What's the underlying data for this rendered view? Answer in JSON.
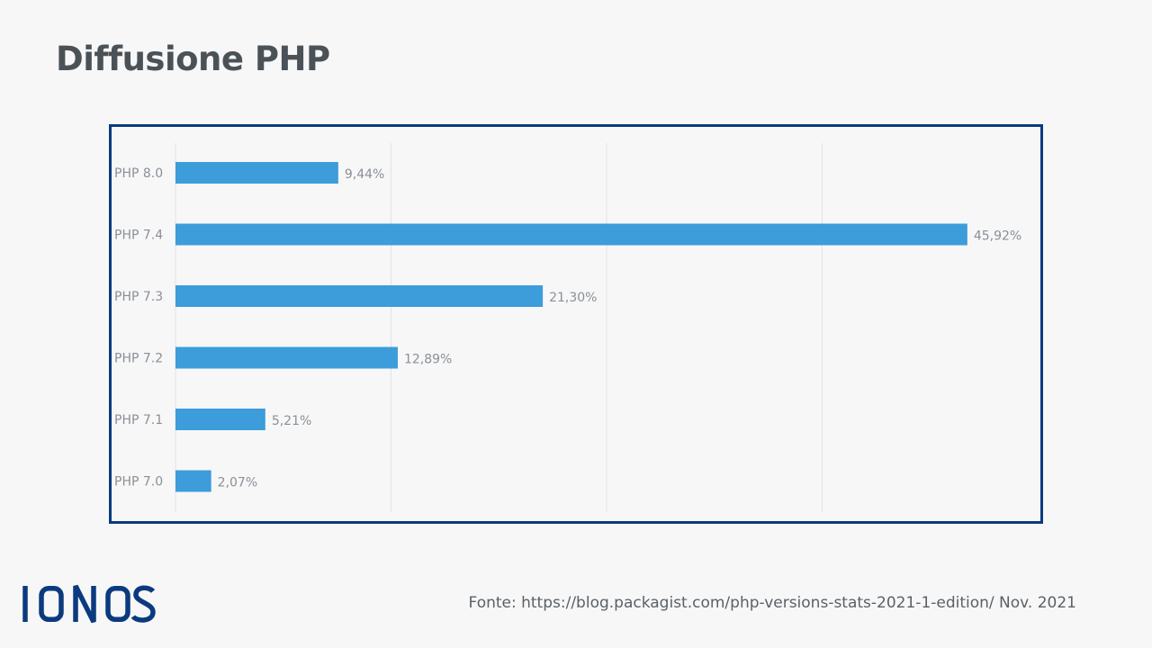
{
  "title": "Diffusione PHP",
  "chart_data": {
    "type": "bar",
    "orientation": "horizontal",
    "categories": [
      "PHP 8.0",
      "PHP 7.4",
      "PHP 7.3",
      "PHP 7.2",
      "PHP 7.1",
      "PHP 7.0"
    ],
    "values": [
      9.44,
      45.92,
      21.3,
      12.89,
      5.21,
      2.07
    ],
    "value_labels": [
      "9,44%",
      "45,92%",
      "21,30%",
      "12,89%",
      "5,21%",
      "2,07%"
    ],
    "xlim": [
      0,
      50
    ],
    "grid": true,
    "bar_color": "#3d9cda",
    "frame_color": "#0b3a7e"
  },
  "footer": {
    "logo_text": "IONOS",
    "source": "Fonte: https://blog.packagist.com/php-versions-stats-2021-1-edition/ Nov. 2021"
  }
}
